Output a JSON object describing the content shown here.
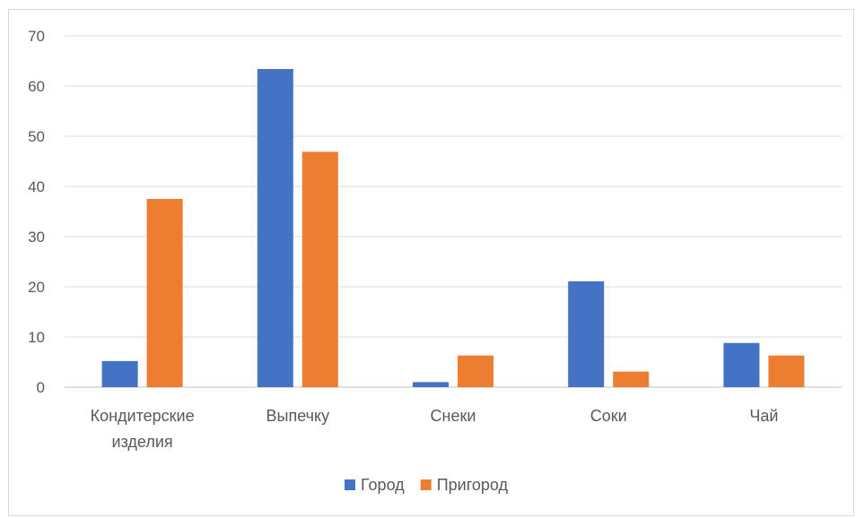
{
  "chart_data": {
    "type": "bar",
    "categories": [
      [
        "Кондитерские",
        "изделия"
      ],
      [
        "Выпечку"
      ],
      [
        "Снеки"
      ],
      [
        "Соки"
      ],
      [
        "Чай"
      ]
    ],
    "series": [
      {
        "name": "Город",
        "color": "#4472C4",
        "values": [
          5.2,
          63.4,
          1.0,
          21.1,
          8.8
        ]
      },
      {
        "name": "Пригород",
        "color": "#ED7D31",
        "values": [
          37.5,
          46.9,
          6.3,
          3.1,
          6.3
        ]
      }
    ],
    "yticks": [
      "0",
      "10",
      "20",
      "30",
      "40",
      "50",
      "60",
      "70"
    ],
    "ylim": [
      0,
      70
    ],
    "grid": true,
    "legend": "bottom"
  }
}
